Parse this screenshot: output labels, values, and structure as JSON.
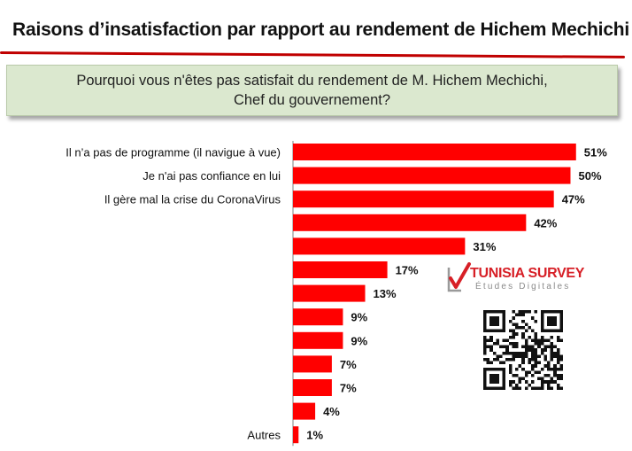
{
  "header": {
    "title": "Raisons d’insatisfaction par rapport au rendement de Hichem Mechichi"
  },
  "question": {
    "line1": "Pourquoi vous n'êtes pas satisfait du rendement de M. Hichem Mechichi,",
    "line2": "Chef du gouvernement?"
  },
  "chart_data": {
    "type": "bar",
    "orientation": "horizontal",
    "categories": [
      "Il n’a pas de programme (il navigue à vue)",
      "Je n'ai pas confiance en lui",
      "Il gère mal la crise du CoronaVirus",
      "",
      "",
      "",
      "",
      "",
      "",
      "",
      "",
      "",
      "Autres"
    ],
    "values": [
      51,
      50,
      47,
      42,
      31,
      17,
      13,
      9,
      9,
      7,
      7,
      4,
      1
    ],
    "value_suffix": "%",
    "title": "",
    "xlabel": "",
    "ylabel": "",
    "xlim": [
      0,
      55
    ],
    "grid": false,
    "bar_color": "#ff0000",
    "axis_color": "#7f7f7f"
  },
  "brand": {
    "name": "TUNISIA SURVEY",
    "tagline": "Études Digitales",
    "color": "#d71f26",
    "icon": "checkmark-logo-icon"
  },
  "qr": {
    "icon": "qr-code-icon"
  }
}
